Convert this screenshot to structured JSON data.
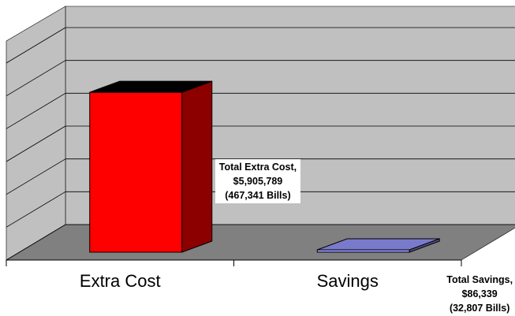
{
  "chart_data": {
    "type": "bar",
    "style": "3d-column",
    "categories": [
      "Extra Cost",
      "Savings"
    ],
    "values": [
      5905789,
      86339
    ],
    "ylim": [
      0,
      7000000
    ],
    "grid": true,
    "legend": "none",
    "colors": {
      "bars": [
        "#ff0000",
        "#9999ff"
      ],
      "wall": "#c0c0c0",
      "floor": "#808080",
      "gridline": "#000000"
    },
    "data_labels": [
      {
        "lines": [
          "Total Extra Cost,",
          "$5,905,789",
          "(467,341 Bills)"
        ]
      },
      {
        "lines": [
          "Total Savings,",
          "$86,339",
          "(32,807 Bills)"
        ]
      }
    ]
  }
}
